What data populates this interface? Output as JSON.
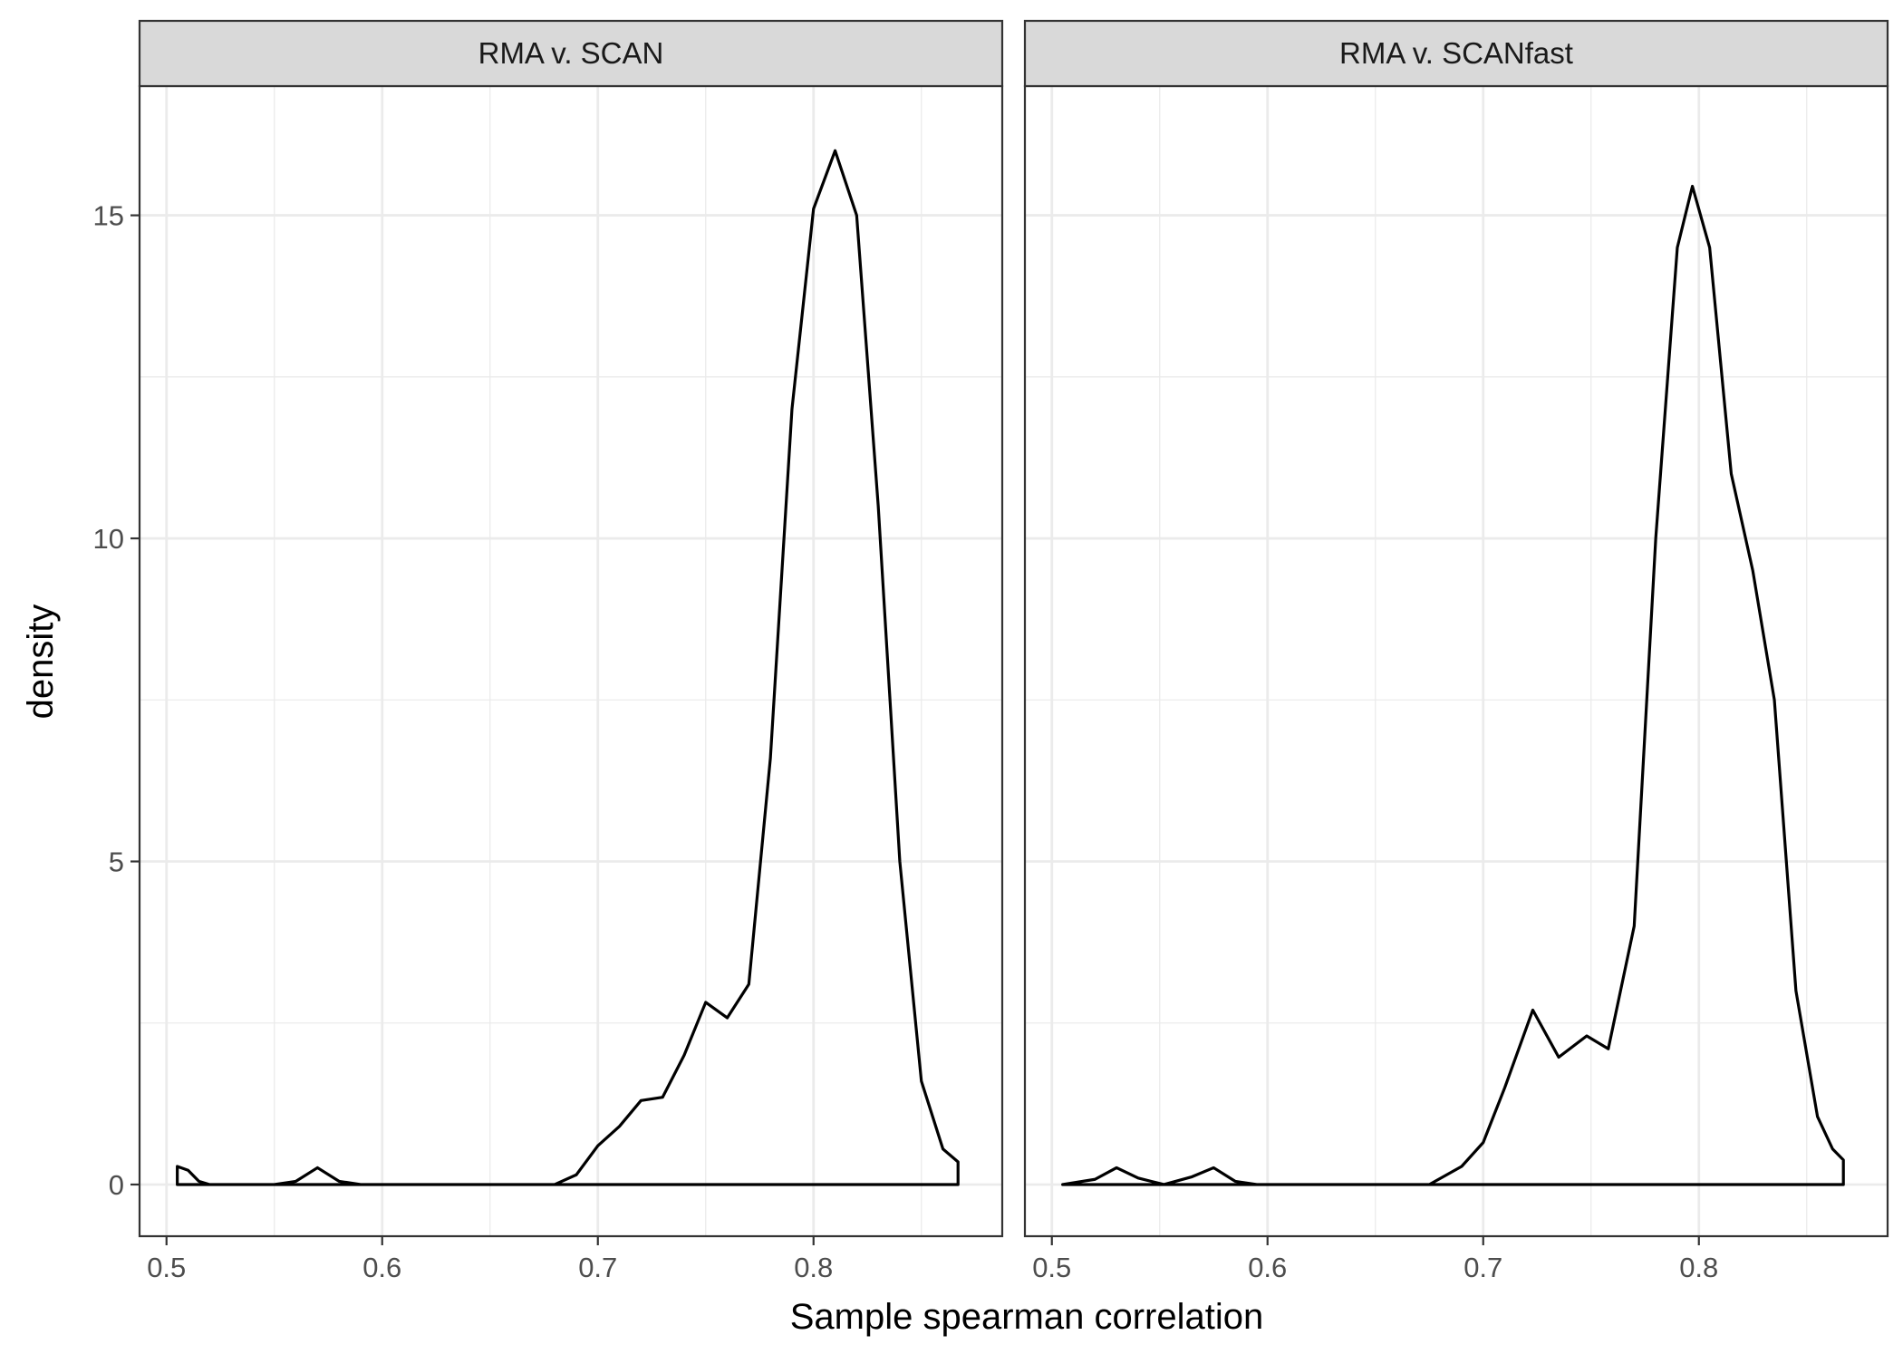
{
  "chart_data": {
    "type": "area",
    "xlabel": "Sample spearman correlation",
    "ylabel": "density",
    "xlim": [
      0.4875,
      0.8875
    ],
    "ylim": [
      -0.8,
      17.0
    ],
    "x_ticks": [
      "0.5",
      "0.6",
      "0.7",
      "0.8"
    ],
    "x_tick_values": [
      0.5,
      0.6,
      0.7,
      0.8
    ],
    "y_ticks": [
      "0",
      "5",
      "10",
      "15"
    ],
    "y_tick_values": [
      0,
      5,
      10,
      15
    ],
    "grid": true,
    "colors": {
      "line": "#000000",
      "strip_bg": "#d9d9d9",
      "grid": "#ebebeb",
      "panel_border": "#333333"
    },
    "panels": [
      {
        "label": "RMA v. SCAN",
        "points": [
          [
            0.505,
            0.28
          ],
          [
            0.51,
            0.22
          ],
          [
            0.515,
            0.05
          ],
          [
            0.52,
            0.0
          ],
          [
            0.55,
            0.0
          ],
          [
            0.56,
            0.05
          ],
          [
            0.57,
            0.26
          ],
          [
            0.58,
            0.05
          ],
          [
            0.59,
            0.0
          ],
          [
            0.68,
            0.0
          ],
          [
            0.69,
            0.15
          ],
          [
            0.7,
            0.6
          ],
          [
            0.71,
            0.9
          ],
          [
            0.72,
            1.3
          ],
          [
            0.73,
            1.35
          ],
          [
            0.74,
            2.0
          ],
          [
            0.75,
            2.82
          ],
          [
            0.76,
            2.58
          ],
          [
            0.77,
            3.1
          ],
          [
            0.78,
            6.6
          ],
          [
            0.79,
            12.0
          ],
          [
            0.8,
            15.1
          ],
          [
            0.81,
            16.0
          ],
          [
            0.82,
            15.0
          ],
          [
            0.83,
            10.5
          ],
          [
            0.84,
            5.0
          ],
          [
            0.85,
            1.6
          ],
          [
            0.86,
            0.55
          ],
          [
            0.867,
            0.35
          ]
        ]
      },
      {
        "label": "RMA v. SCANfast",
        "points": [
          [
            0.505,
            0.0
          ],
          [
            0.52,
            0.08
          ],
          [
            0.53,
            0.26
          ],
          [
            0.54,
            0.1
          ],
          [
            0.552,
            0.0
          ],
          [
            0.565,
            0.12
          ],
          [
            0.575,
            0.26
          ],
          [
            0.585,
            0.05
          ],
          [
            0.595,
            0.0
          ],
          [
            0.675,
            0.0
          ],
          [
            0.69,
            0.28
          ],
          [
            0.7,
            0.65
          ],
          [
            0.71,
            1.5
          ],
          [
            0.723,
            2.7
          ],
          [
            0.735,
            1.97
          ],
          [
            0.748,
            2.3
          ],
          [
            0.758,
            2.1
          ],
          [
            0.77,
            4.0
          ],
          [
            0.78,
            10.0
          ],
          [
            0.79,
            14.5
          ],
          [
            0.797,
            15.45
          ],
          [
            0.805,
            14.5
          ],
          [
            0.815,
            11.0
          ],
          [
            0.825,
            9.5
          ],
          [
            0.835,
            7.5
          ],
          [
            0.845,
            3.0
          ],
          [
            0.855,
            1.05
          ],
          [
            0.862,
            0.55
          ],
          [
            0.867,
            0.38
          ]
        ]
      }
    ]
  }
}
